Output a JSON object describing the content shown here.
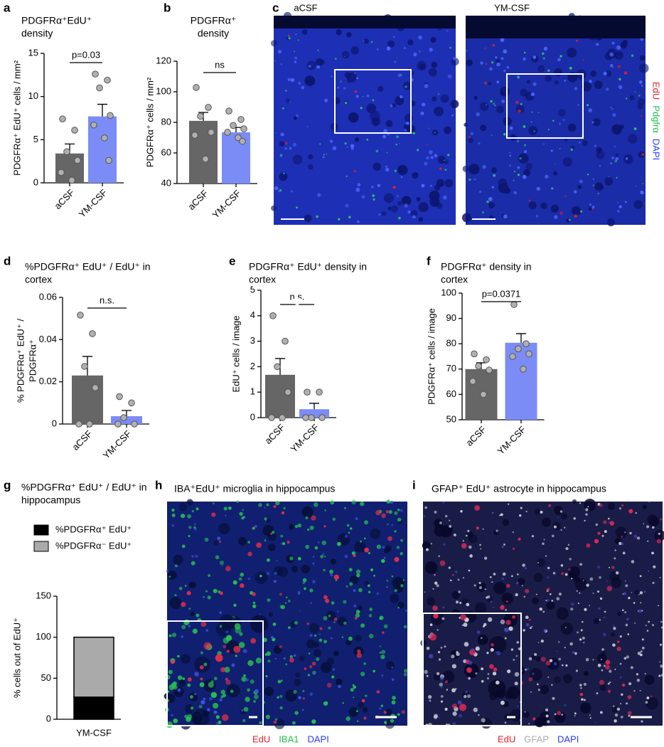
{
  "chart_data": [
    {
      "panel": "a",
      "type": "bar_scatter",
      "title": [
        "PDGFRα⁺EdU⁺",
        "density"
      ],
      "y_label": [
        "PDGFRα⁺ EdU⁺ cells / mm²"
      ],
      "categories": [
        "aCSF",
        "YM-CSF"
      ],
      "colors": [
        "#666666",
        "#7b8cf7"
      ],
      "values": [
        3.4,
        7.7
      ],
      "errors": [
        1.1,
        1.4
      ],
      "points": [
        [
          7.4,
          6.1,
          3.6,
          2.6,
          1.2,
          0.3
        ],
        [
          12.6,
          11.9,
          11.0,
          7.8,
          6.7,
          5.2,
          2.6
        ]
      ],
      "ylim": [
        0,
        15
      ],
      "yticks": [
        0,
        5,
        10,
        15
      ],
      "annotation": "p=0.03"
    },
    {
      "panel": "b",
      "type": "bar_scatter",
      "title": [
        "PDGFRα⁺",
        "density"
      ],
      "y_label": [
        "PDGFRα⁺ cells / mm²"
      ],
      "categories": [
        "aCSF",
        "YM-CSF"
      ],
      "colors": [
        "#666666",
        "#7b8cf7"
      ],
      "values": [
        81,
        73.5
      ],
      "errors": [
        5.5,
        3.2
      ],
      "points": [
        [
          102.8,
          89.8,
          84,
          73.5,
          71.6,
          56
        ],
        [
          87.4,
          81.9,
          78,
          75.8,
          73.5,
          70,
          67.6
        ]
      ],
      "ylim": [
        40,
        120
      ],
      "yticks": [
        40,
        60,
        80,
        100,
        120
      ],
      "annotation": "ns"
    },
    {
      "panel": "d",
      "type": "bar_scatter",
      "title": [
        "%PDGFRα⁺ EdU⁺ / EdU⁺ in",
        "cortex"
      ],
      "y_label": [
        "% PDGFRα⁺ EdU⁺ /",
        "PDGFRα⁺"
      ],
      "categories": [
        "aCSF",
        "YM-CSF"
      ],
      "colors": [
        "#666666",
        "#7b8cf7"
      ],
      "values": [
        0.023,
        0.0037
      ],
      "errors": [
        0.009,
        0.0027
      ],
      "points": [
        [
          0.0516,
          0.0428,
          0.0273,
          0.0172,
          0,
          0
        ],
        [
          0.013,
          0.01,
          0.003,
          0,
          0
        ]
      ],
      "ylim": [
        0,
        0.06
      ],
      "yticks": [
        0,
        0.02,
        0.04,
        0.06
      ],
      "annotation": "n.s."
    },
    {
      "panel": "e",
      "type": "bar_scatter",
      "title": [
        "PDGFRα⁺ EdU⁺ density in",
        "cortex"
      ],
      "y_label": [
        "EdU⁺ cells / image"
      ],
      "categories": [
        "aCSF",
        "YM-CSF"
      ],
      "colors": [
        "#666666",
        "#7b8cf7"
      ],
      "values": [
        1.68,
        0.33
      ],
      "errors": [
        0.64,
        0.23
      ],
      "points": [
        [
          4,
          3,
          2,
          1,
          0,
          0
        ],
        [
          1,
          1,
          0,
          0,
          0
        ]
      ],
      "ylim": [
        0,
        5
      ],
      "yticks": [
        0,
        1,
        2,
        3,
        4,
        5
      ],
      "annotation": "n.s."
    },
    {
      "panel": "f",
      "type": "bar_scatter",
      "title": [
        "PDGFRα⁺ density in",
        "cortex"
      ],
      "y_label": [
        "PDGFRα⁺ cells / image"
      ],
      "categories": [
        "aCSF",
        "YM-CSF"
      ],
      "colors": [
        "#666666",
        "#7b8cf7"
      ],
      "values": [
        70,
        80.4
      ],
      "errors": [
        2.5,
        3.6
      ],
      "points": [
        [
          76,
          73.7,
          71.2,
          69.6,
          65.2,
          60
        ],
        [
          95.5,
          80,
          78,
          76,
          75,
          70
        ]
      ],
      "ylim": [
        50,
        100
      ],
      "yticks": [
        50,
        60,
        70,
        80,
        90,
        100
      ],
      "annotation": "p=0.0371"
    },
    {
      "panel": "g",
      "type": "stacked_bar",
      "title": [
        "%PDGFRα⁺ EdU⁺ / EdU⁺ in",
        "hippocampus"
      ],
      "y_label": [
        "% cells out of EdU⁺"
      ],
      "categories": [
        "YM-CSF"
      ],
      "series": [
        {
          "name": "%PDGFRα⁺ EdU⁺",
          "color": "#000000",
          "values": [
            27
          ]
        },
        {
          "name": "%PDGFRα⁻ EdU⁺",
          "color": "#aaaaaa",
          "values": [
            73
          ]
        }
      ],
      "ylim": [
        0,
        150
      ],
      "yticks": [
        0,
        50,
        100,
        150
      ]
    }
  ],
  "micrographs": [
    {
      "panel": "c",
      "conditions": [
        "aCSF",
        "YM-CSF"
      ],
      "channels": [
        {
          "name": "EdU",
          "color": "#e8202a"
        },
        {
          "name": "Pdgfrα",
          "color": "#1fbf4a"
        },
        {
          "name": "DAPI",
          "color": "#2a3cff"
        }
      ]
    },
    {
      "panel": "h",
      "title": "IBA⁺EdU⁺ microglia in hippocampus",
      "channels": [
        {
          "name": "EdU",
          "color": "#e8202a"
        },
        {
          "name": "IBA1",
          "color": "#1fbf4a"
        },
        {
          "name": "DAPI",
          "color": "#2a3cff"
        }
      ]
    },
    {
      "panel": "i",
      "title": "GFAP⁺ EdU⁺ astrocyte in hippocampus",
      "channels": [
        {
          "name": "EdU",
          "color": "#e8202a"
        },
        {
          "name": "GFAP",
          "color": "#aaaaaa"
        },
        {
          "name": "DAPI",
          "color": "#2a3cff"
        }
      ]
    }
  ]
}
